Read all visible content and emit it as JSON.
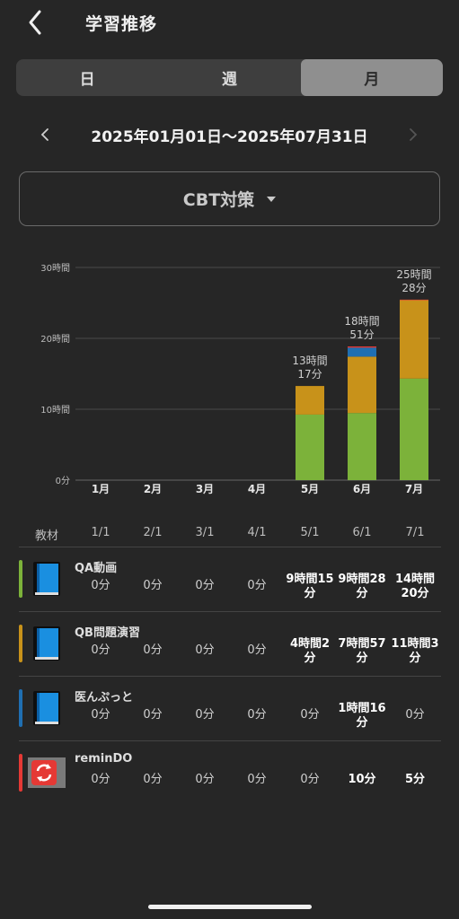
{
  "header": {
    "title": "学習推移"
  },
  "tabs": [
    {
      "label": "日",
      "active": false
    },
    {
      "label": "週",
      "active": false
    },
    {
      "label": "月",
      "active": true
    }
  ],
  "date_range": "2025年01月01日～2025年07月31日",
  "selector": {
    "label": "CBT対策"
  },
  "colors": {
    "qa": "#7cb23a",
    "qb": "#c8921a",
    "med": "#1f6fb2",
    "remindo": "#e53935",
    "grid": "#4a4a4a"
  },
  "chart_data": {
    "type": "bar",
    "stacked": true,
    "categories": [
      "1月",
      "2月",
      "3月",
      "4月",
      "5月",
      "6月",
      "7月"
    ],
    "ylim": [
      0,
      30
    ],
    "yticks": [
      "0分",
      "10時間",
      "20時間",
      "30時間"
    ],
    "series": [
      {
        "key": "qa",
        "values": [
          0,
          0,
          0,
          0,
          9.25,
          9.47,
          14.33
        ]
      },
      {
        "key": "qb",
        "values": [
          0,
          0,
          0,
          0,
          4.03,
          7.95,
          11.05
        ]
      },
      {
        "key": "med",
        "values": [
          0,
          0,
          0,
          0,
          0,
          1.27,
          0
        ]
      },
      {
        "key": "remindo",
        "values": [
          0,
          0,
          0,
          0,
          0,
          0.17,
          0.08
        ]
      }
    ],
    "totals": [
      {
        "index": 4,
        "line1": "13時間",
        "line2": "17分"
      },
      {
        "index": 5,
        "line1": "18時間",
        "line2": "51分"
      },
      {
        "index": 6,
        "line1": "25時間",
        "line2": "28分"
      }
    ]
  },
  "table": {
    "header": [
      "教材",
      "1/1",
      "2/1",
      "3/1",
      "4/1",
      "5/1",
      "6/1",
      "7/1"
    ],
    "rows": [
      {
        "name": "QA動画",
        "color": "qa",
        "icon": "book-icon",
        "cells": [
          [
            "0分"
          ],
          [
            "0分"
          ],
          [
            "0分"
          ],
          [
            "0分"
          ],
          [
            "9時間15",
            "分"
          ],
          [
            "9時間28",
            "分"
          ],
          [
            "14時間",
            "20分"
          ]
        ]
      },
      {
        "name": "QB問題演習",
        "color": "qb",
        "icon": "book-icon",
        "cells": [
          [
            "0分"
          ],
          [
            "0分"
          ],
          [
            "0分"
          ],
          [
            "0分"
          ],
          [
            "4時間2",
            "分"
          ],
          [
            "7時間57",
            "分"
          ],
          [
            "11時間3",
            "分"
          ]
        ]
      },
      {
        "name": "医んぷっと",
        "color": "med",
        "icon": "book-icon",
        "cells": [
          [
            "0分"
          ],
          [
            "0分"
          ],
          [
            "0分"
          ],
          [
            "0分"
          ],
          [
            "0分"
          ],
          [
            "1時間16",
            "分"
          ],
          [
            "0分"
          ]
        ]
      },
      {
        "name": "reminDO",
        "color": "remindo",
        "icon": "refresh-icon",
        "cells": [
          [
            "0分"
          ],
          [
            "0分"
          ],
          [
            "0分"
          ],
          [
            "0分"
          ],
          [
            "0分"
          ],
          [
            "10分"
          ],
          [
            "5分"
          ]
        ]
      }
    ]
  }
}
